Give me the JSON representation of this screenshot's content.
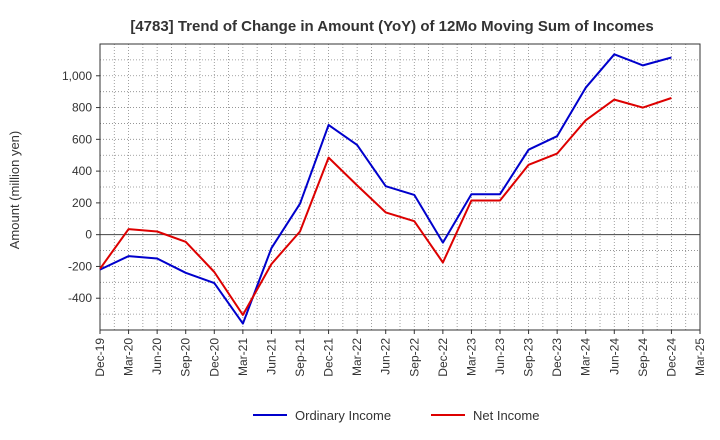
{
  "chart_data": {
    "type": "line",
    "title": "[4783]  Trend of Change in Amount (YoY) of 12Mo Moving Sum of Incomes",
    "xlabel": "",
    "ylabel": "Amount (million yen)",
    "ylim": [
      -600,
      1200
    ],
    "yticks": [
      -400,
      -200,
      0,
      200,
      400,
      600,
      800,
      "1,000"
    ],
    "categories": [
      "Dec-19",
      "Mar-20",
      "Jun-20",
      "Sep-20",
      "Dec-20",
      "Mar-21",
      "Jun-21",
      "Sep-21",
      "Dec-21",
      "Mar-22",
      "Jun-22",
      "Sep-22",
      "Dec-22",
      "Mar-23",
      "Jun-23",
      "Sep-23",
      "Dec-23",
      "Mar-24",
      "Jun-24",
      "Sep-24",
      "Dec-24",
      "Mar-25"
    ],
    "series": [
      {
        "name": "Ordinary Income",
        "color": "#0000cc",
        "values": [
          -220,
          -135,
          -150,
          -240,
          -305,
          -560,
          -85,
          195,
          690,
          565,
          305,
          250,
          -50,
          255,
          255,
          535,
          620,
          925,
          1135,
          1065,
          1115,
          null
        ]
      },
      {
        "name": "Net Income",
        "color": "#dd0000",
        "values": [
          -215,
          35,
          20,
          -45,
          -235,
          -505,
          -185,
          20,
          485,
          310,
          140,
          85,
          -175,
          215,
          215,
          440,
          510,
          720,
          850,
          800,
          860,
          null
        ]
      }
    ],
    "legend": "bottom"
  }
}
